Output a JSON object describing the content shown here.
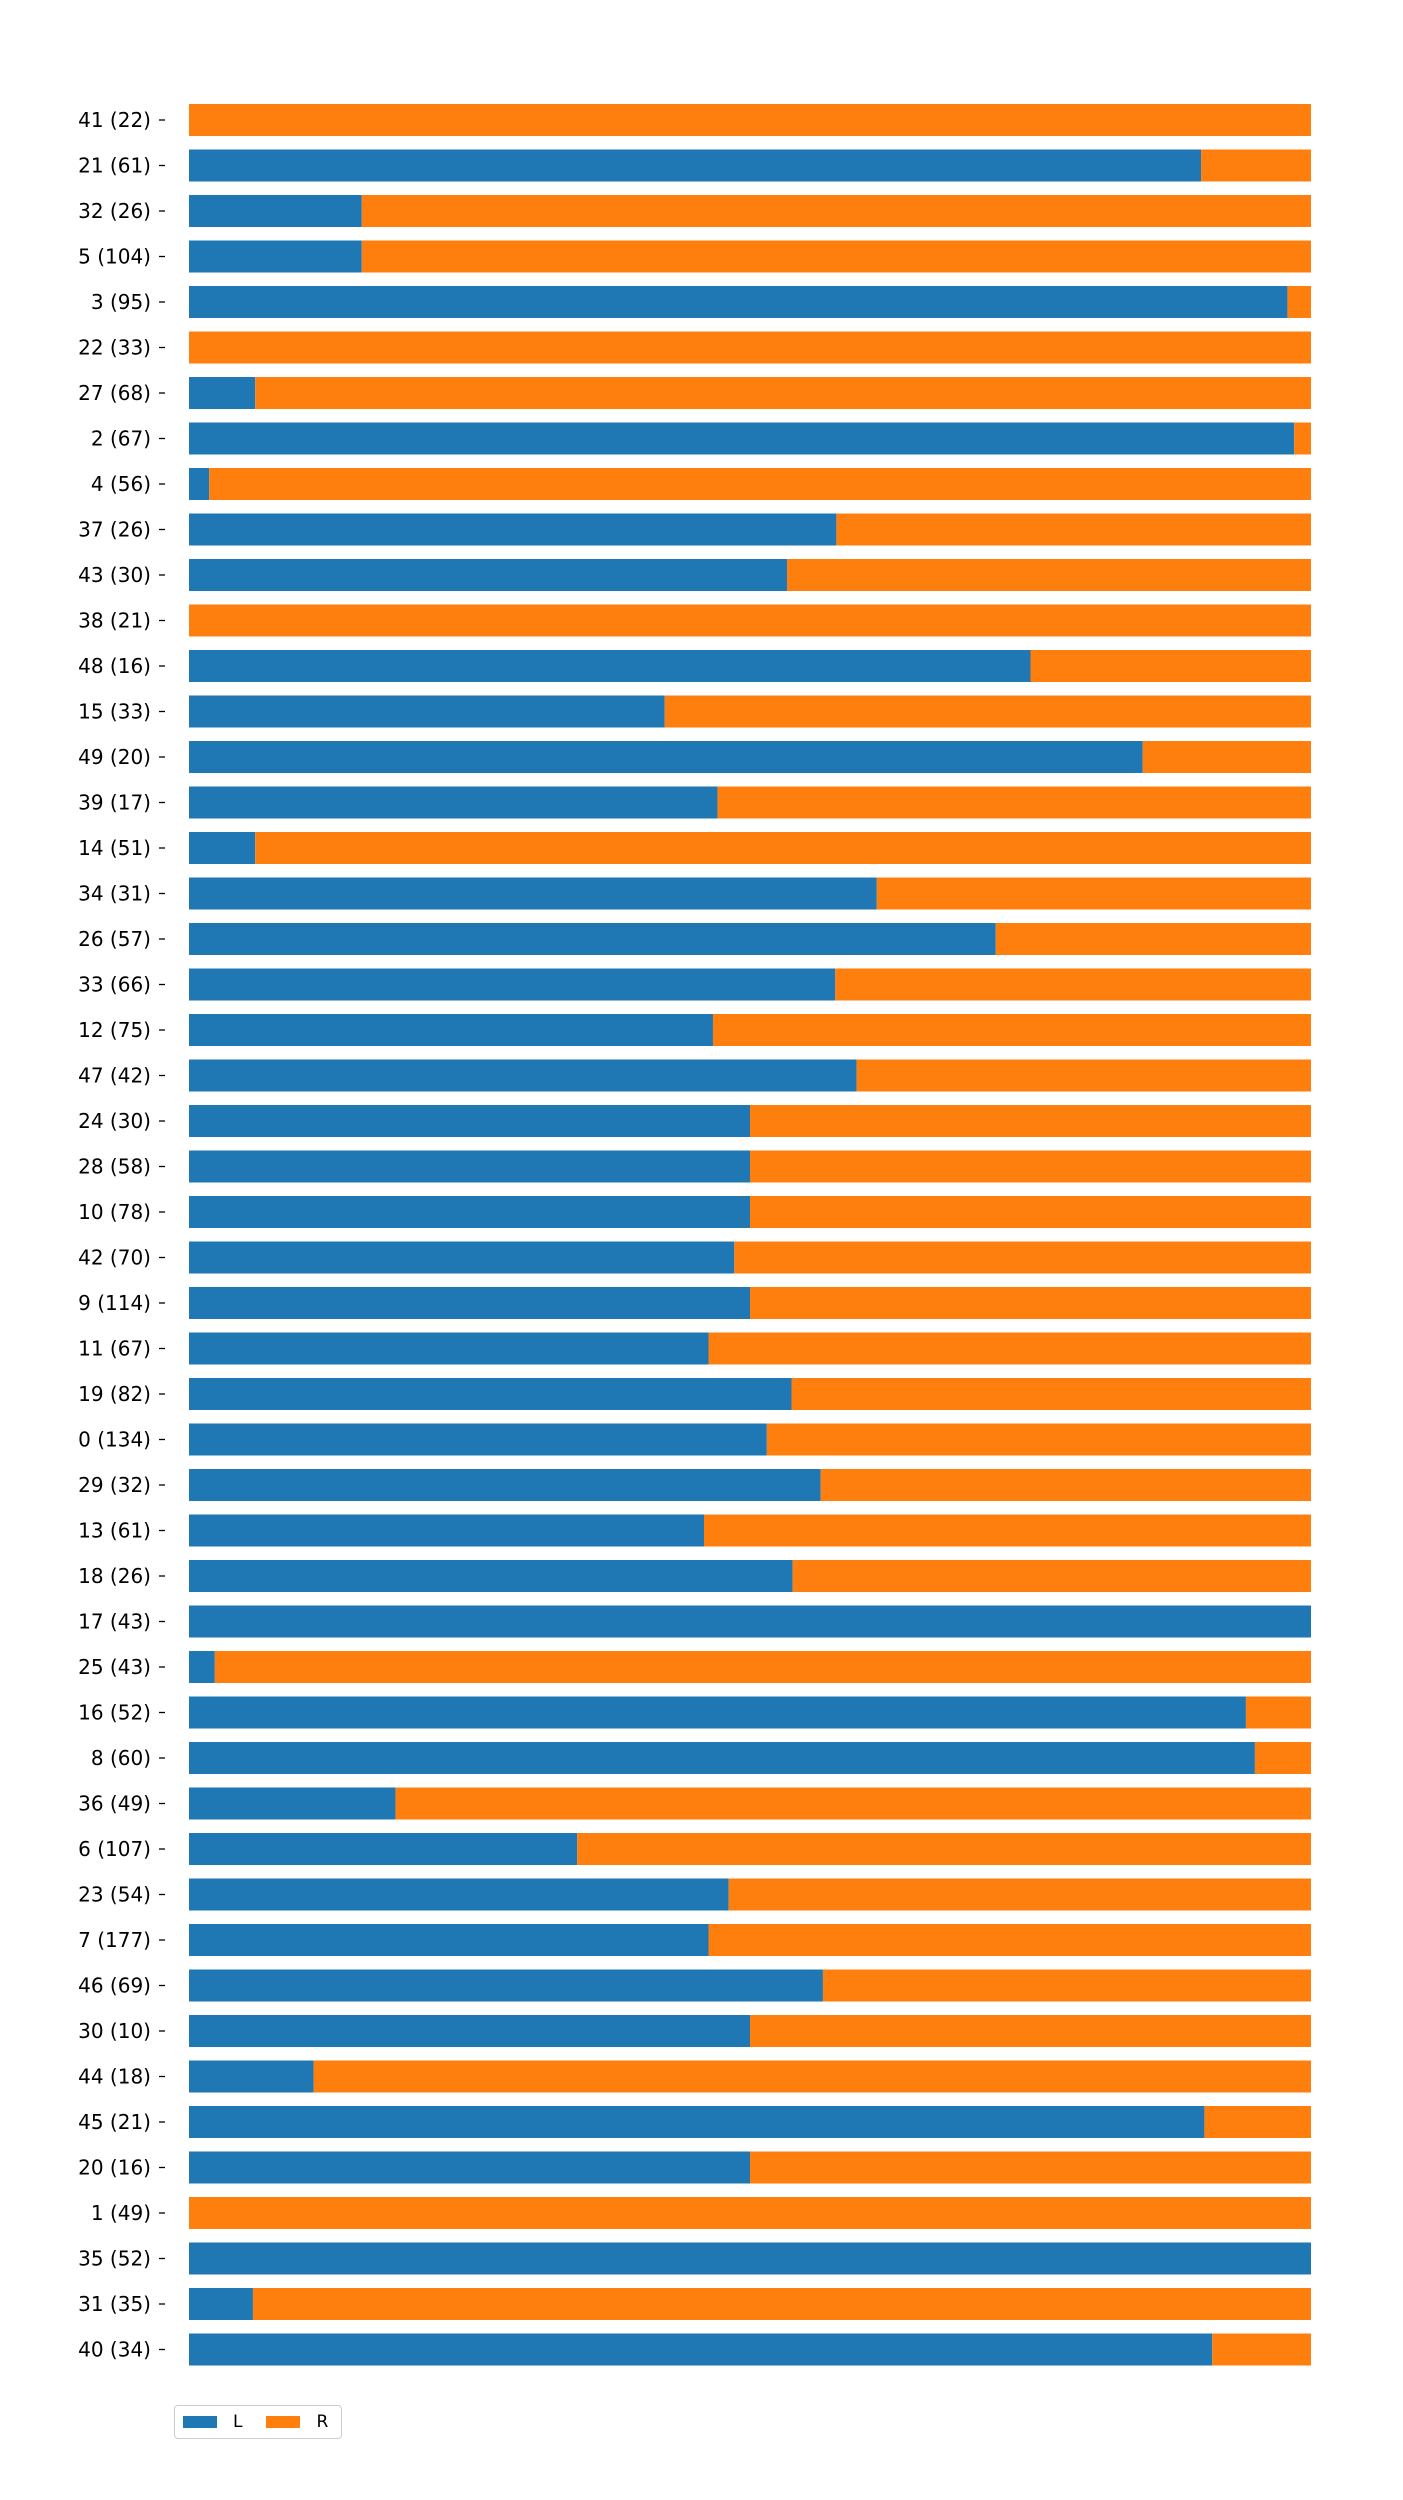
{
  "chart_data": {
    "type": "bar",
    "orientation": "horizontal",
    "stacked": true,
    "normalized": true,
    "title": "",
    "xlabel": "",
    "ylabel": "",
    "xlim": [
      0,
      1
    ],
    "grid": false,
    "legend_position": "bottom-left",
    "categories": [
      "41 (22)",
      "21 (61)",
      "32 (26)",
      "5 (104)",
      "3 (95)",
      "22 (33)",
      "27 (68)",
      "2 (67)",
      "4 (56)",
      "37 (26)",
      "43 (30)",
      "38 (21)",
      "48 (16)",
      "15 (33)",
      "49 (20)",
      "39 (17)",
      "14 (51)",
      "34 (31)",
      "26 (57)",
      "33 (66)",
      "12 (75)",
      "47 (42)",
      "24 (30)",
      "28 (58)",
      "10 (78)",
      "42 (70)",
      "9 (114)",
      "11 (67)",
      "19 (82)",
      "0 (134)",
      "29 (32)",
      "13 (61)",
      "18 (26)",
      "17 (43)",
      "25 (43)",
      "16 (52)",
      "8 (60)",
      "36 (49)",
      "6 (107)",
      "23 (54)",
      "7 (177)",
      "46 (69)",
      "30 (10)",
      "44 (18)",
      "45 (21)",
      "20 (16)",
      "1 (49)",
      "35 (52)",
      "31 (35)",
      "40 (34)"
    ],
    "series": [
      {
        "name": "L",
        "color": "#1f77b4",
        "values": [
          0.0,
          0.902,
          0.154,
          0.154,
          0.979,
          0.0,
          0.059,
          0.985,
          0.018,
          0.577,
          0.533,
          0.0,
          0.75,
          0.424,
          0.85,
          0.471,
          0.059,
          0.613,
          0.719,
          0.576,
          0.467,
          0.595,
          0.5,
          0.5,
          0.5,
          0.486,
          0.5,
          0.463,
          0.537,
          0.515,
          0.563,
          0.459,
          0.538,
          1.0,
          0.023,
          0.942,
          0.95,
          0.184,
          0.346,
          0.481,
          0.463,
          0.565,
          0.5,
          0.111,
          0.905,
          0.5,
          0.0,
          1.0,
          0.057,
          0.912
        ]
      },
      {
        "name": "R",
        "color": "#ff7f0e",
        "values": [
          1.0,
          0.098,
          0.846,
          0.846,
          0.021,
          1.0,
          0.941,
          0.015,
          0.982,
          0.423,
          0.467,
          1.0,
          0.25,
          0.576,
          0.15,
          0.529,
          0.941,
          0.387,
          0.281,
          0.424,
          0.533,
          0.405,
          0.5,
          0.5,
          0.5,
          0.514,
          0.5,
          0.537,
          0.463,
          0.485,
          0.437,
          0.541,
          0.462,
          0.0,
          0.977,
          0.058,
          0.05,
          0.816,
          0.654,
          0.519,
          0.537,
          0.435,
          0.5,
          0.889,
          0.095,
          0.5,
          1.0,
          0.0,
          0.943,
          0.088
        ]
      }
    ]
  }
}
